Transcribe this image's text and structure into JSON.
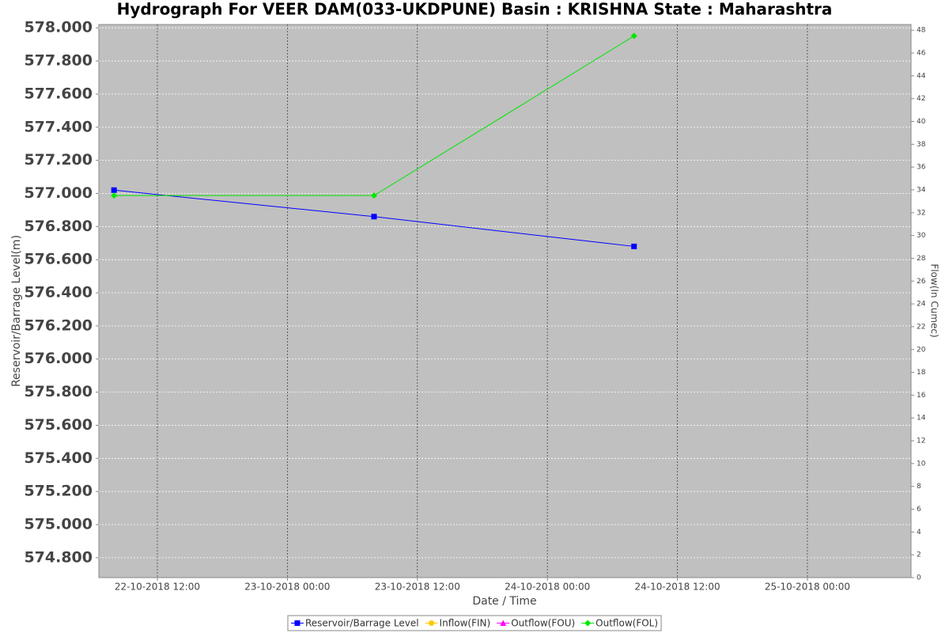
{
  "chart_data": {
    "type": "line",
    "title": "Hydrograph For VEER DAM(033-UKDPUNE) Basin : KRISHNA State : Maharashtra",
    "xlabel": "Date / Time",
    "ylabel": "Reservoir/Barrage Level(m)",
    "y2label": "Flow(In Cumec)",
    "x": [
      "2018-10-22T08:00",
      "2018-10-23T08:00",
      "2018-10-24T08:00"
    ],
    "xlim": [
      "2018-10-22T06:36",
      "2018-10-25T09:34"
    ],
    "xticks": [
      {
        "value": "2018-10-22T12:00",
        "label": "22-10-2018 12:00"
      },
      {
        "value": "2018-10-23T00:00",
        "label": "23-10-2018 00:00"
      },
      {
        "value": "2018-10-23T12:00",
        "label": "23-10-2018 12:00"
      },
      {
        "value": "2018-10-24T00:00",
        "label": "24-10-2018 00:00"
      },
      {
        "value": "2018-10-24T12:00",
        "label": "24-10-2018 12:00"
      },
      {
        "value": "2018-10-25T00:00",
        "label": "25-10-2018 00:00"
      }
    ],
    "ylim": [
      574.68,
      578.02
    ],
    "yticks": [
      {
        "value": 574.8,
        "label": "574.800"
      },
      {
        "value": 575.0,
        "label": "575.000"
      },
      {
        "value": 575.2,
        "label": "575.200"
      },
      {
        "value": 575.4,
        "label": "575.400"
      },
      {
        "value": 575.6,
        "label": "575.600"
      },
      {
        "value": 575.8,
        "label": "575.800"
      },
      {
        "value": 576.0,
        "label": "576.000"
      },
      {
        "value": 576.2,
        "label": "576.200"
      },
      {
        "value": 576.4,
        "label": "576.400"
      },
      {
        "value": 576.6,
        "label": "576.600"
      },
      {
        "value": 576.8,
        "label": "576.800"
      },
      {
        "value": 577.0,
        "label": "577.000"
      },
      {
        "value": 577.2,
        "label": "577.200"
      },
      {
        "value": 577.4,
        "label": "577.400"
      },
      {
        "value": 577.6,
        "label": "577.600"
      },
      {
        "value": 577.8,
        "label": "577.800"
      },
      {
        "value": 578.0,
        "label": "578.000"
      }
    ],
    "y2lim": [
      0,
      48.5
    ],
    "y2ticks": [
      0,
      2,
      4,
      6,
      8,
      10,
      12,
      14,
      16,
      18,
      20,
      22,
      24,
      26,
      28,
      30,
      32,
      34,
      36,
      38,
      40,
      42,
      44,
      46,
      48
    ],
    "grid": true,
    "legend": "bottom",
    "series": [
      {
        "name": "Reservoir/Barrage Level",
        "color": "#0000ff",
        "marker": "square",
        "values": [
          577.02,
          576.86,
          576.68
        ]
      },
      {
        "name": "Inflow(FIN)",
        "color": "#ffc800",
        "marker": "circle",
        "axis": "y2",
        "values": [
          null,
          null,
          null
        ]
      },
      {
        "name": "Outflow(FOU)",
        "color": "#ff00ff",
        "marker": "triangle",
        "axis": "y2",
        "values": [
          null,
          null,
          null
        ]
      },
      {
        "name": "Outflow(FOL)",
        "color": "#00e600",
        "marker": "diamond",
        "axis": "y2",
        "values": [
          33.5,
          33.5,
          47.5
        ]
      }
    ]
  }
}
